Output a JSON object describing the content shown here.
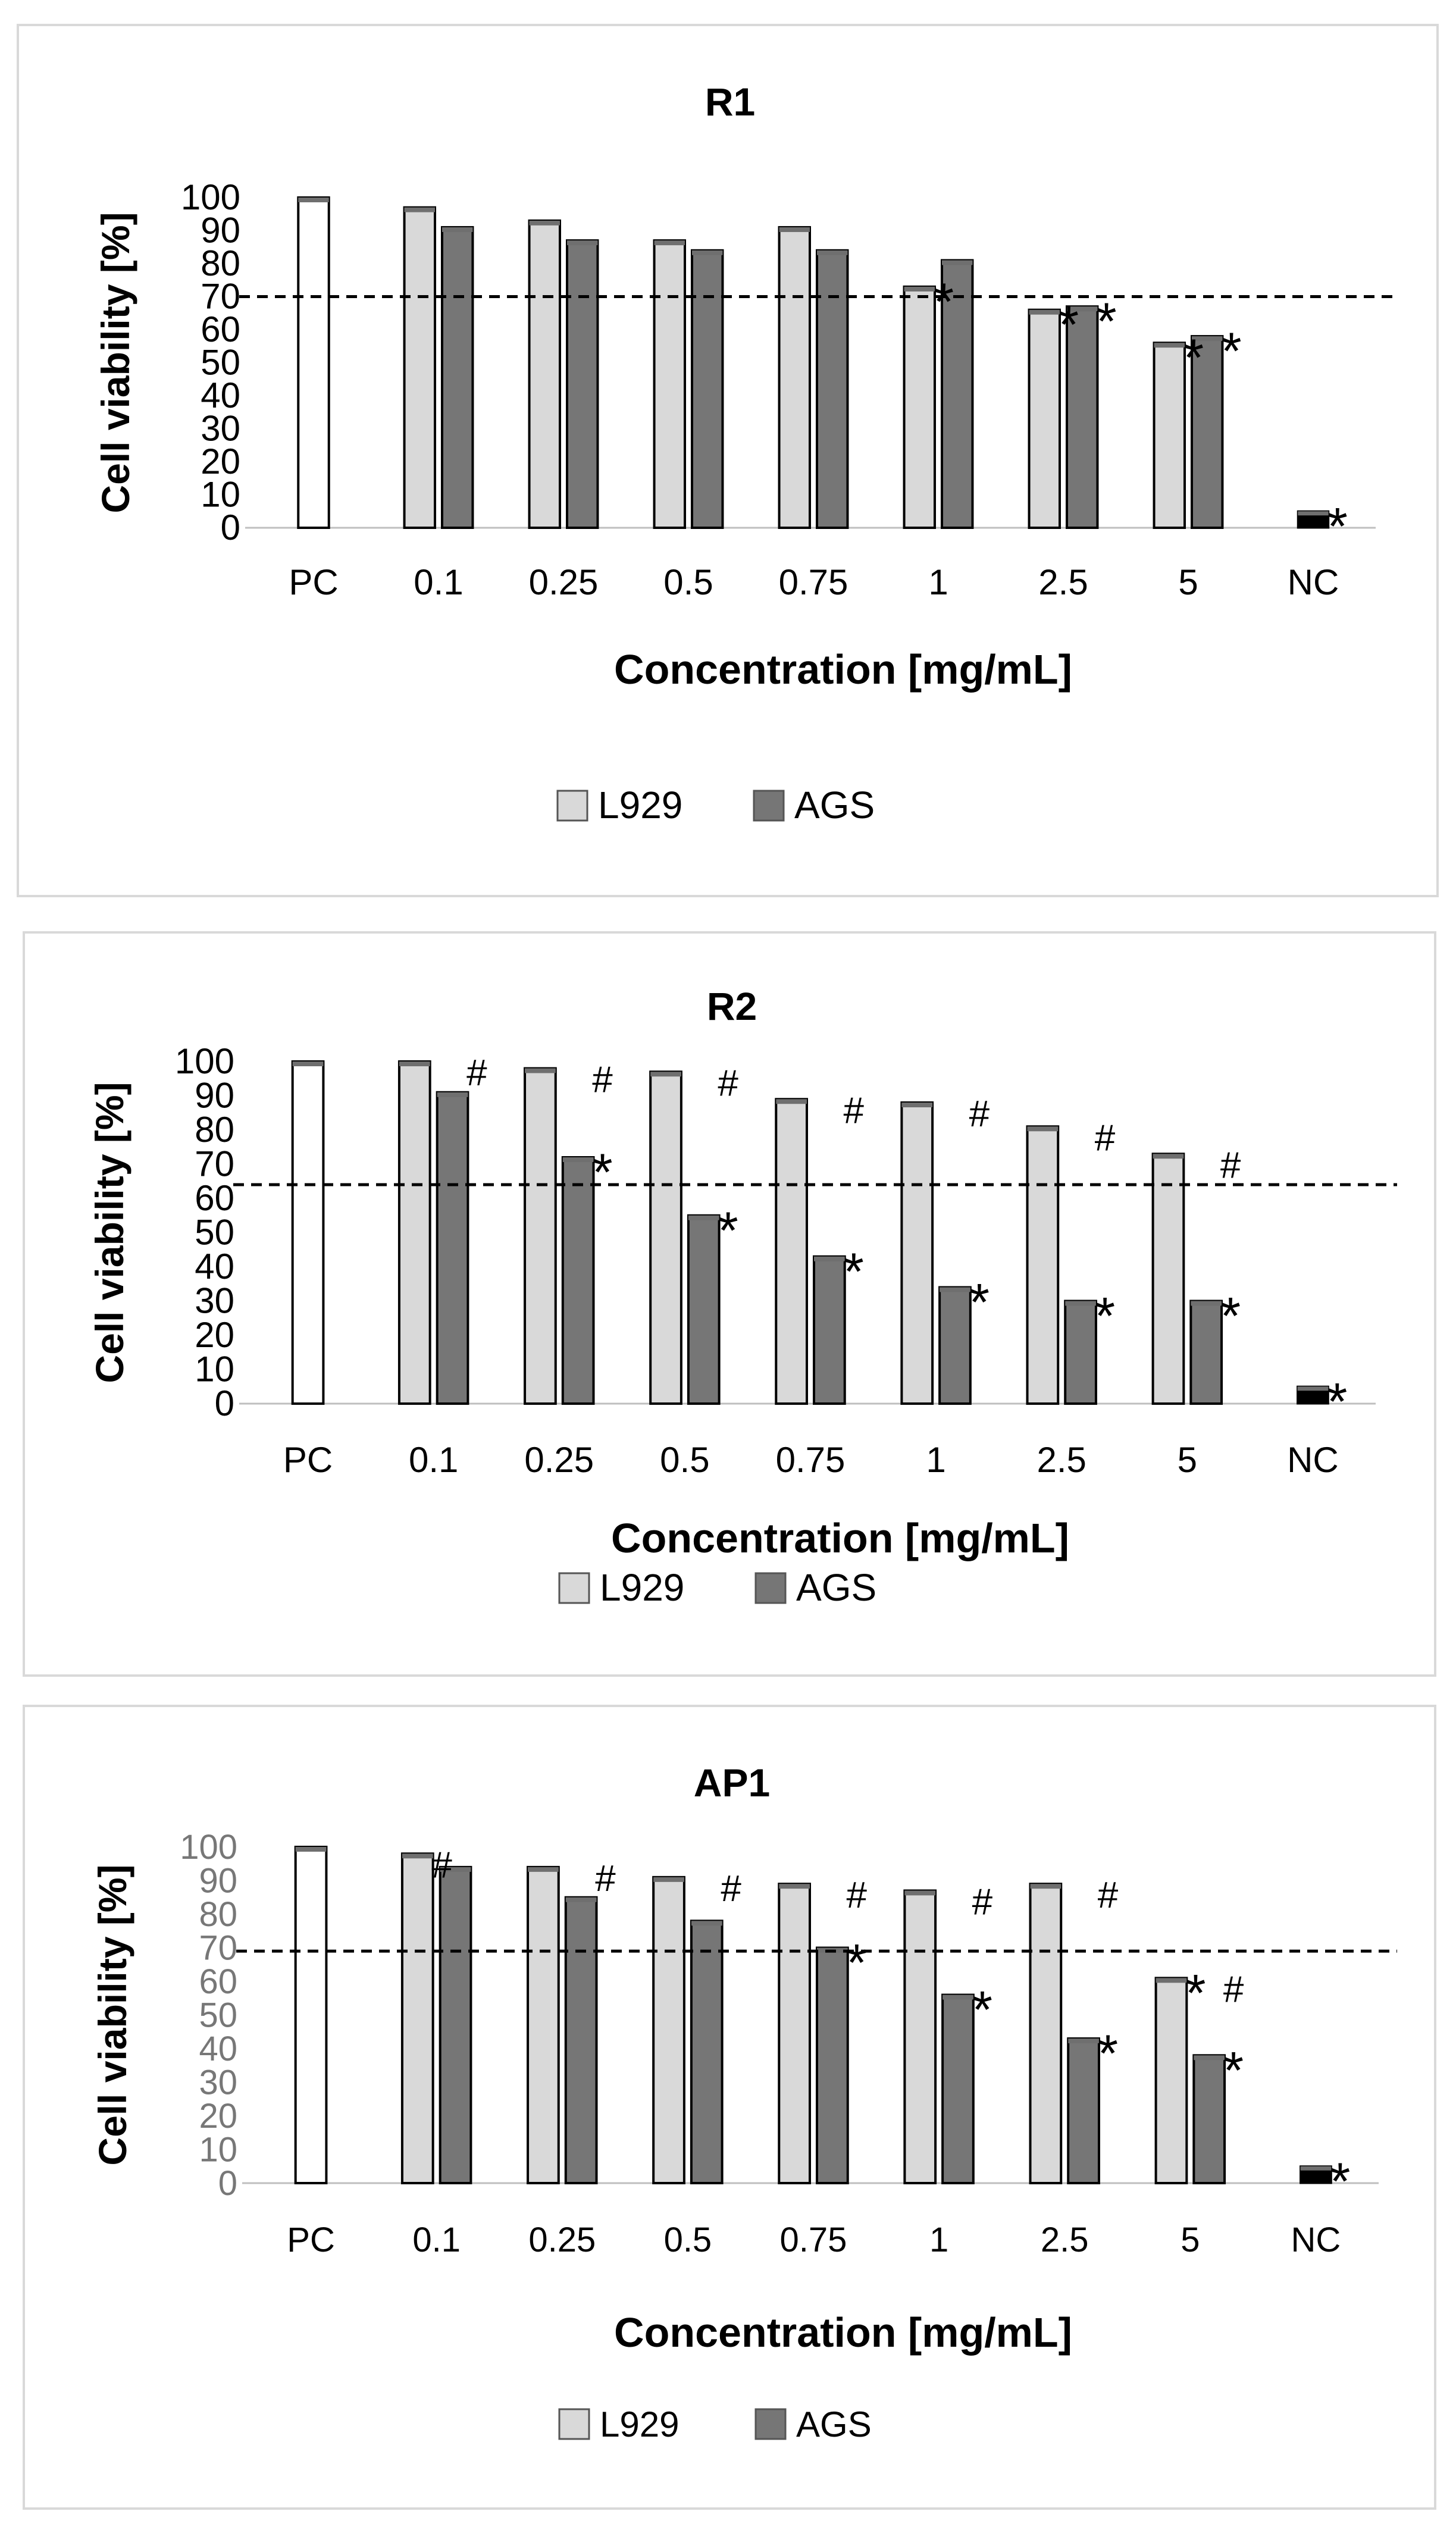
{
  "chart_data": [
    {
      "type": "bar",
      "title": "R1",
      "xlabel": "Concentration [mg/mL]",
      "ylabel": "Cell viability [%]",
      "ylim": [
        0,
        100
      ],
      "yticks": [
        "0",
        "10",
        "20",
        "30",
        "40",
        "50",
        "60",
        "70",
        "80",
        "90",
        "100"
      ],
      "categories": [
        "PC",
        "0.1",
        "0.25",
        "0.5",
        "0.75",
        "1",
        "2.5",
        "5",
        "NC"
      ],
      "reference_line": 70,
      "series": [
        {
          "name": "L929",
          "color": "#d9d9d9",
          "values": [
            null,
            97,
            93,
            87,
            91,
            73,
            66,
            56,
            null
          ]
        },
        {
          "name": "AGS",
          "color": "#767676",
          "values": [
            null,
            91,
            87,
            84,
            84,
            81,
            67,
            58,
            null
          ]
        }
      ],
      "controls": {
        "PC": 100,
        "NC": 5
      },
      "annotations": [
        {
          "category": "1",
          "series": "L929",
          "text": "*"
        },
        {
          "category": "2.5",
          "series": "L929",
          "text": "*"
        },
        {
          "category": "2.5",
          "series": "AGS",
          "text": "*"
        },
        {
          "category": "5",
          "series": "L929",
          "text": "*"
        },
        {
          "category": "5",
          "series": "AGS",
          "text": "*"
        },
        {
          "category": "NC",
          "series": "control",
          "text": "*"
        }
      ],
      "legend": "bottom"
    },
    {
      "type": "bar",
      "title": "R2",
      "xlabel": "Concentration [mg/mL]",
      "ylabel": "Cell viability [%]",
      "ylim": [
        0,
        100
      ],
      "yticks": [
        "0",
        "10",
        "20",
        "30",
        "40",
        "50",
        "60",
        "70",
        "80",
        "90",
        "100"
      ],
      "categories": [
        "PC",
        "0.1",
        "0.25",
        "0.5",
        "0.75",
        "1",
        "2.5",
        "5",
        "NC"
      ],
      "reference_line": 64,
      "series": [
        {
          "name": "L929",
          "color": "#d9d9d9",
          "values": [
            null,
            100,
            98,
            97,
            89,
            88,
            81,
            73,
            null
          ]
        },
        {
          "name": "AGS",
          "color": "#767676",
          "values": [
            null,
            91,
            72,
            55,
            43,
            34,
            30,
            30,
            null
          ]
        }
      ],
      "controls": {
        "PC": 100,
        "NC": 5
      },
      "annotations": [
        {
          "category": "0.1",
          "series": "AGS",
          "text": "#"
        },
        {
          "category": "0.25",
          "series": "AGS",
          "text": "#"
        },
        {
          "category": "0.25",
          "series": "AGS",
          "text": "*"
        },
        {
          "category": "0.5",
          "series": "AGS",
          "text": "#"
        },
        {
          "category": "0.5",
          "series": "AGS",
          "text": "*"
        },
        {
          "category": "0.75",
          "series": "AGS",
          "text": "#"
        },
        {
          "category": "0.75",
          "series": "AGS",
          "text": "*"
        },
        {
          "category": "1",
          "series": "AGS",
          "text": "#"
        },
        {
          "category": "1",
          "series": "AGS",
          "text": "*"
        },
        {
          "category": "2.5",
          "series": "AGS",
          "text": "#"
        },
        {
          "category": "2.5",
          "series": "AGS",
          "text": "*"
        },
        {
          "category": "5",
          "series": "AGS",
          "text": "#"
        },
        {
          "category": "5",
          "series": "AGS",
          "text": "*"
        },
        {
          "category": "NC",
          "series": "control",
          "text": "*"
        }
      ],
      "legend": "bottom"
    },
    {
      "type": "bar",
      "title": "AP1",
      "xlabel": "Concentration [mg/mL]",
      "ylabel": "Cell viability [%]",
      "ylim": [
        0,
        100
      ],
      "yticks": [
        "0",
        "10",
        "20",
        "30",
        "40",
        "50",
        "60",
        "70",
        "80",
        "90",
        "100"
      ],
      "categories": [
        "PC",
        "0.1",
        "0.25",
        "0.5",
        "0.75",
        "1",
        "2.5",
        "5",
        "NC"
      ],
      "reference_line": 69,
      "series": [
        {
          "name": "L929",
          "color": "#d9d9d9",
          "values": [
            null,
            98,
            94,
            91,
            89,
            87,
            89,
            61,
            null
          ]
        },
        {
          "name": "AGS",
          "color": "#767676",
          "values": [
            null,
            94,
            85,
            78,
            70,
            56,
            43,
            38,
            null
          ]
        }
      ],
      "controls": {
        "PC": 100,
        "NC": 5
      },
      "annotations": [
        {
          "category": "0.1",
          "series": "L929",
          "text": "#"
        },
        {
          "category": "0.25",
          "series": "AGS",
          "text": "#"
        },
        {
          "category": "0.5",
          "series": "AGS",
          "text": "#"
        },
        {
          "category": "0.75",
          "series": "AGS",
          "text": "#"
        },
        {
          "category": "0.75",
          "series": "AGS",
          "text": "*"
        },
        {
          "category": "1",
          "series": "AGS",
          "text": "#"
        },
        {
          "category": "1",
          "series": "AGS",
          "text": "*"
        },
        {
          "category": "2.5",
          "series": "AGS",
          "text": "#"
        },
        {
          "category": "2.5",
          "series": "AGS",
          "text": "*"
        },
        {
          "category": "5",
          "series": "AGS",
          "text": "#"
        },
        {
          "category": "5",
          "series": "L929",
          "text": "*"
        },
        {
          "category": "5",
          "series": "AGS",
          "text": "*"
        },
        {
          "category": "NC",
          "series": "control",
          "text": "*"
        }
      ],
      "legend": "bottom"
    }
  ]
}
